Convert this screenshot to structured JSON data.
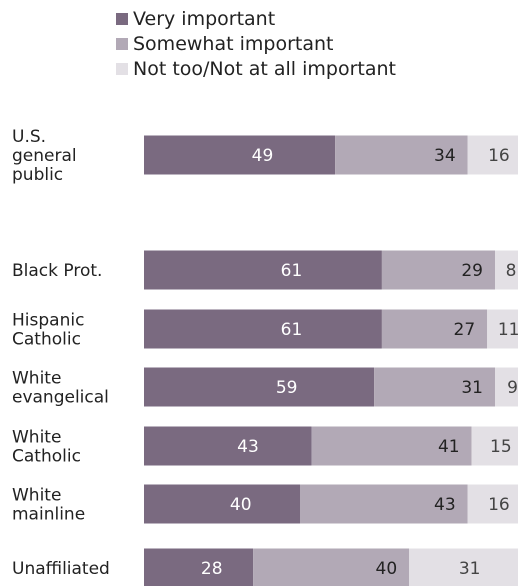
{
  "chart_data": {
    "type": "bar",
    "orientation": "horizontal",
    "stacked": true,
    "categories": [
      [
        "U.S.",
        "general",
        "public"
      ],
      [
        "Black Prot."
      ],
      [
        "Hispanic",
        "Catholic"
      ],
      [
        "White",
        "evangelical"
      ],
      [
        "White",
        "Catholic"
      ],
      [
        "White",
        "mainline"
      ],
      [
        "Unaffiliated"
      ]
    ],
    "series": [
      {
        "name": "Very important",
        "values": [
          49,
          61,
          61,
          59,
          43,
          40,
          28
        ],
        "color": "#7a6a80"
      },
      {
        "name": "Somewhat important",
        "values": [
          34,
          29,
          27,
          31,
          41,
          43,
          40
        ],
        "color": "#b2a9b6"
      },
      {
        "name": "Not too/Not at all important",
        "values": [
          16,
          8,
          11,
          9,
          15,
          16,
          31
        ],
        "color": "#e3e0e5"
      }
    ],
    "value_label_colors": [
      "#ffffff",
      "#222222",
      "#444444"
    ],
    "legend_position": "top",
    "grid": false
  }
}
